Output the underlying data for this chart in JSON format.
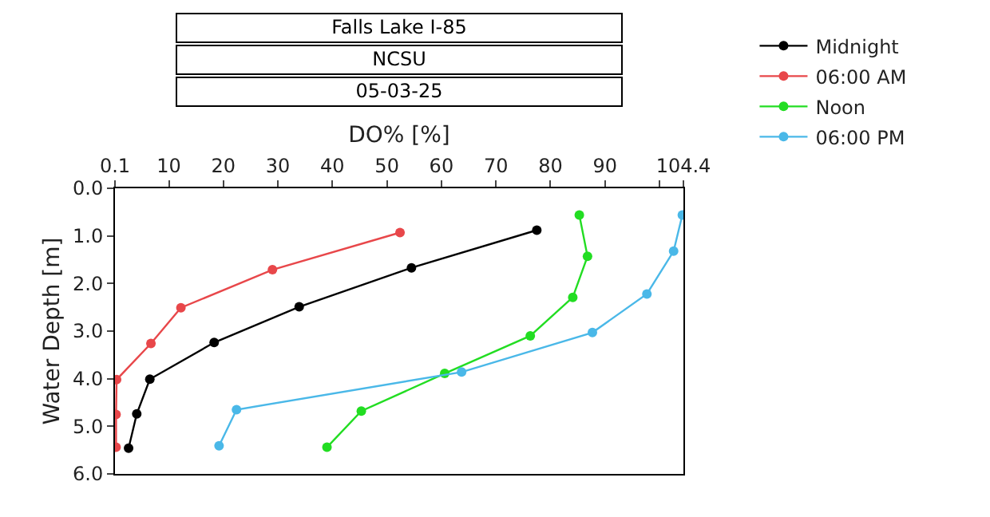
{
  "chart_data": {
    "type": "line",
    "title": "Falls Lake I-85",
    "subtitle": "NCSU",
    "annotations": [
      "05-03-25"
    ],
    "xlabel": "DO% [%]",
    "ylabel": "Water Depth [m]",
    "xlim": [
      0.1,
      104.4
    ],
    "xticks": [
      0.1,
      10,
      20,
      30,
      40,
      50,
      60,
      70,
      80,
      90,
      {
        "value": 100,
        "label": null
      },
      104.4
    ],
    "ylim": [
      6,
      0
    ],
    "yticks": [
      {
        "value": 0,
        "label": "0.0"
      },
      {
        "value": 1,
        "label": "1.0"
      },
      {
        "value": 2,
        "label": "2.0"
      },
      {
        "value": 3,
        "label": "3.0"
      },
      {
        "value": 4,
        "label": "4.0"
      },
      {
        "value": 5,
        "label": "5.0"
      },
      {
        "value": 6,
        "label": "6.0"
      }
    ],
    "grid": false,
    "legend": "top right",
    "marker": "circle",
    "line_style": "solid",
    "series": [
      {
        "name": "Midnight",
        "color": "#000000",
        "x": [
          77.5,
          54.5,
          33.9,
          18.3,
          6.5,
          4.1,
          2.6
        ],
        "values": [
          0.88,
          1.67,
          2.49,
          3.24,
          4.01,
          4.74,
          5.46
        ]
      },
      {
        "name": "06:00 AM",
        "color": "#e8474a",
        "x": [
          52.4,
          29.0,
          12.2,
          6.7,
          0.4,
          0.3,
          0.3
        ],
        "values": [
          0.93,
          1.71,
          2.51,
          3.26,
          4.02,
          4.75,
          5.44
        ]
      },
      {
        "name": "Noon",
        "color": "#22dd22",
        "x": [
          85.3,
          86.8,
          84.1,
          76.3,
          60.6,
          45.3,
          39.0
        ],
        "values": [
          0.56,
          1.43,
          2.29,
          3.1,
          3.89,
          4.68,
          5.44
        ]
      },
      {
        "name": "06:00 PM",
        "color": "#4ab8e8",
        "x": [
          104.2,
          102.6,
          97.7,
          87.7,
          63.7,
          22.4,
          19.2
        ],
        "values": [
          0.56,
          1.32,
          2.22,
          3.03,
          3.86,
          4.65,
          5.41
        ]
      }
    ]
  }
}
